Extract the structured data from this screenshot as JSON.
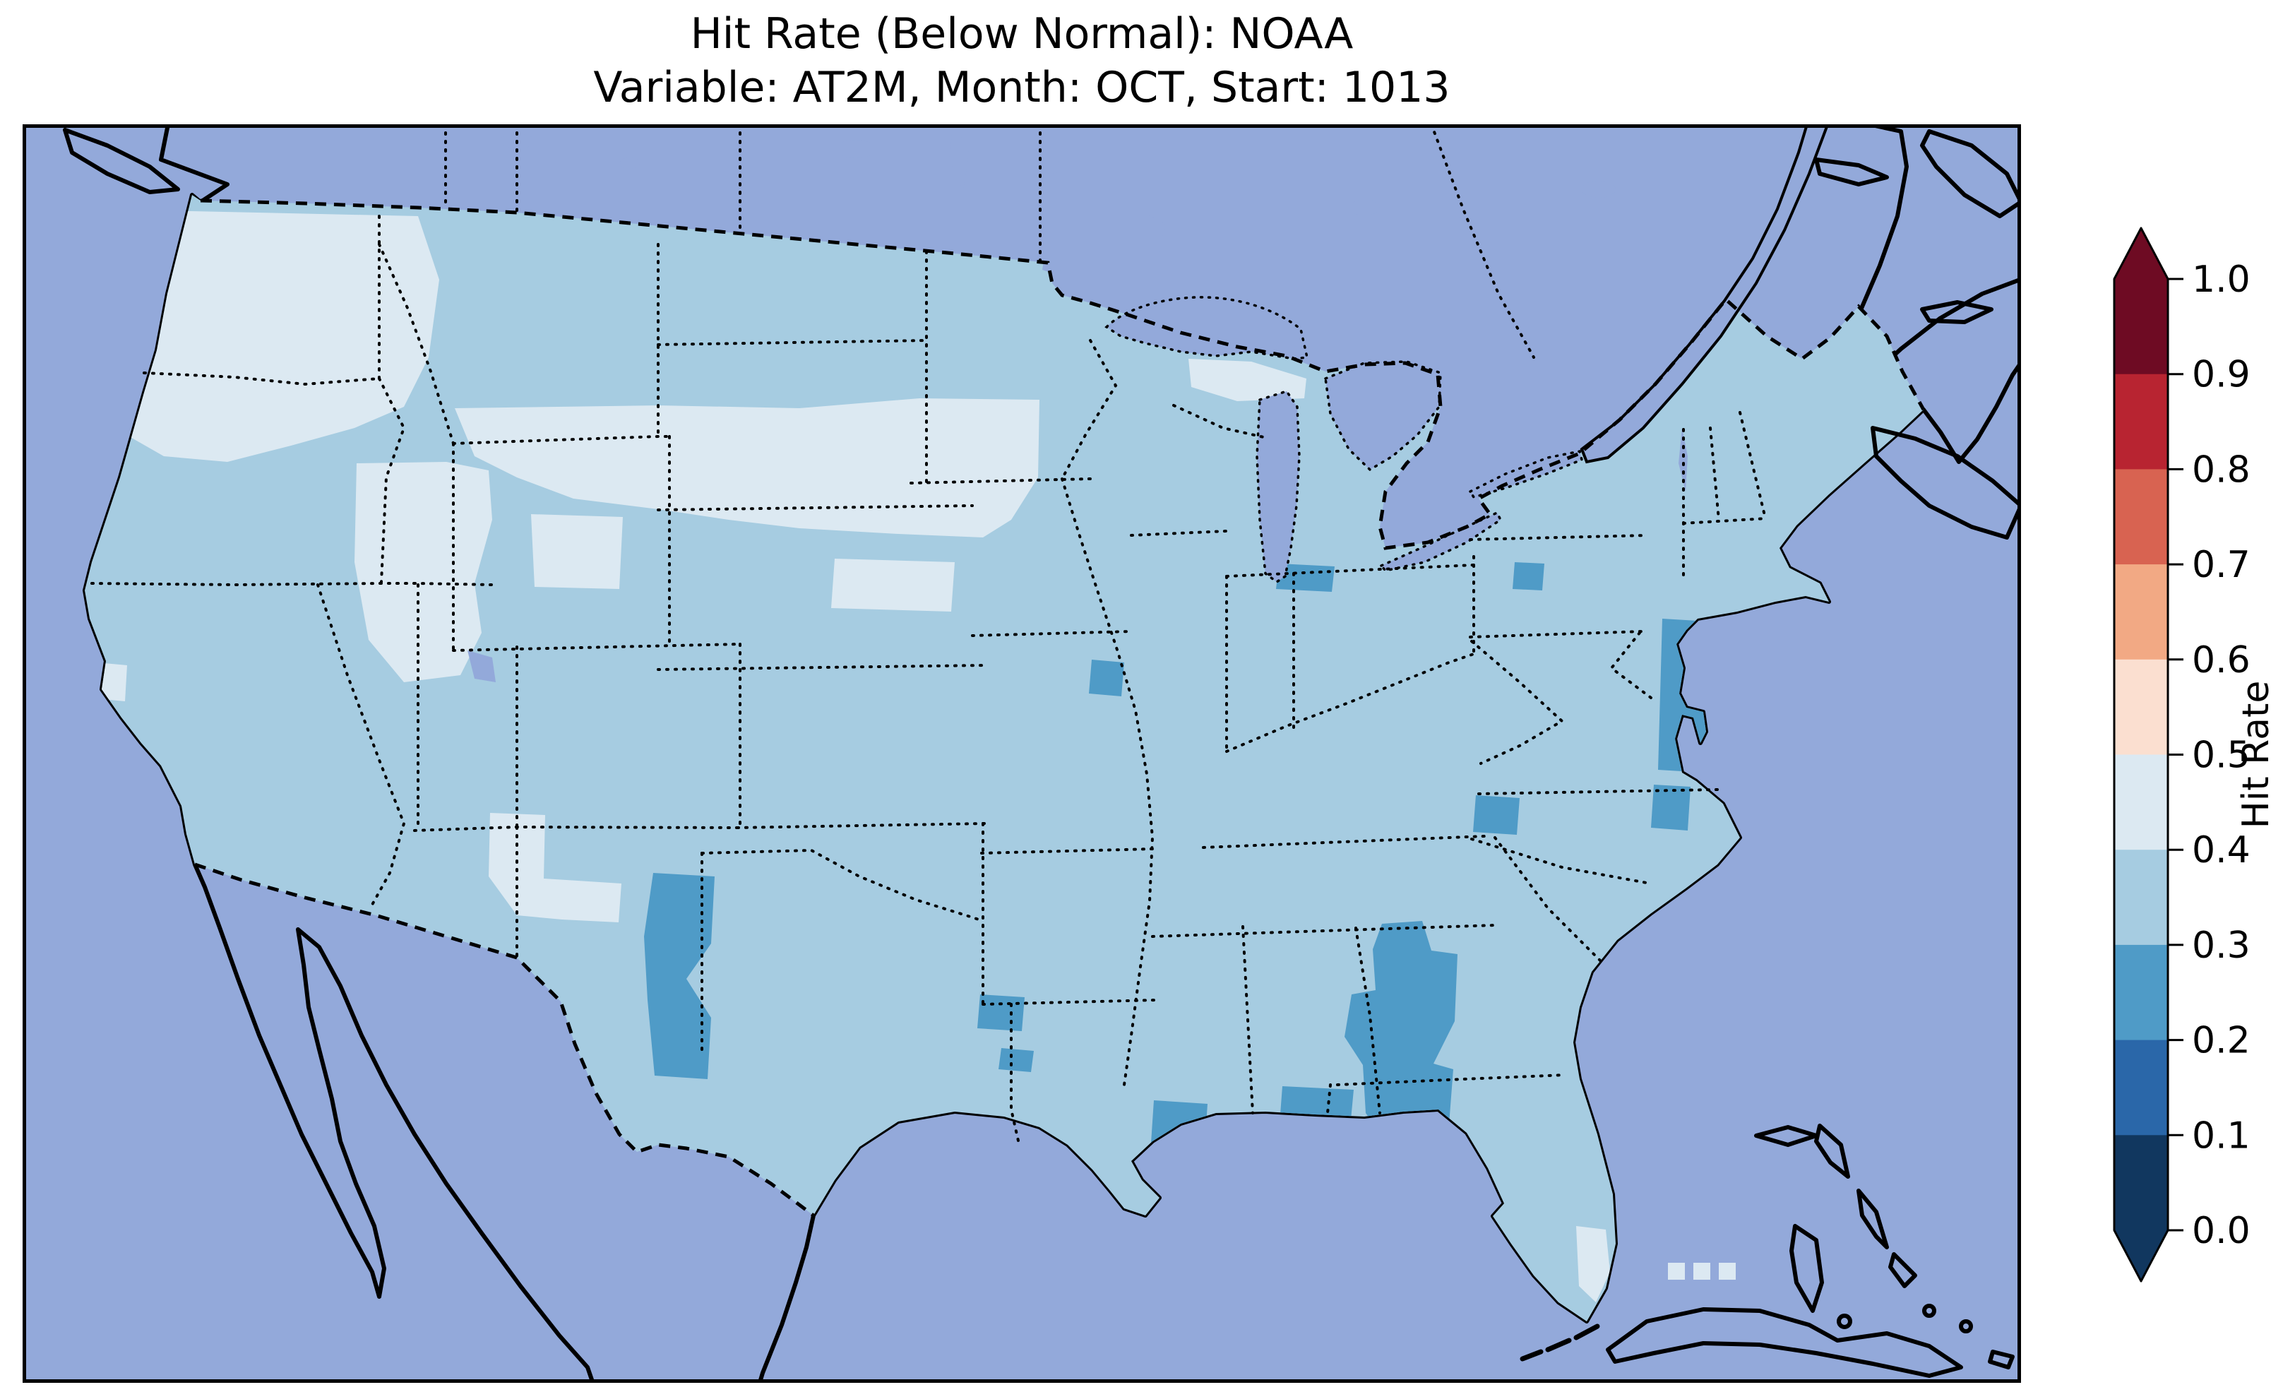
{
  "title": {
    "line1": "Hit Rate (Below Normal): NOAA",
    "line2": "Variable: AT2M, Month: OCT, Start: 1013"
  },
  "colorbar": {
    "label": "Hit Rate",
    "ticks": [
      "1.0",
      "0.9",
      "0.8",
      "0.7",
      "0.6",
      "0.5",
      "0.4",
      "0.3",
      "0.2",
      "0.1",
      "0.0"
    ],
    "extend": "both",
    "outline_color": "#000000",
    "bins_top_to_bottom": [
      {
        "range": "0.9-1.0",
        "color": "#6e0b23"
      },
      {
        "range": "0.8-0.9",
        "color": "#b82431"
      },
      {
        "range": "0.7-0.8",
        "color": "#d86351"
      },
      {
        "range": "0.6-0.7",
        "color": "#f2a984"
      },
      {
        "range": "0.5-0.6",
        "color": "#fbdfd0"
      },
      {
        "range": "0.4-0.5",
        "color": "#dce9f2"
      },
      {
        "range": "0.3-0.4",
        "color": "#a6cce1"
      },
      {
        "range": "0.2-0.3",
        "color": "#4f9bc7"
      },
      {
        "range": "0.1-0.2",
        "color": "#2a67a9"
      },
      {
        "range": "0.0-0.1",
        "color": "#11375f"
      }
    ]
  },
  "map": {
    "fills": {
      "ocean": "#93a9da",
      "land": "#efecd4",
      "lake": "#93a9da",
      "base": "#a6cce1",
      "light": "#dce9f2",
      "dark": "#4f9bc7",
      "coastline": "#000000"
    }
  },
  "chart_data": {
    "type": "heatmap",
    "subtype": "gridded geographic hit-rate map (Lambert-conformal CONUS view)",
    "title": "Hit Rate (Below Normal): NOAA",
    "subtitle": "Variable: AT2M, Month: OCT, Start: 1013",
    "region": "Continental United States with surrounding Canada, Mexico, Cuba, Bahamas",
    "colormap": "RdBu reversed, 10 discrete bins, extended arrows both ends",
    "colorbar_label": "Hit Rate",
    "bin_edges": [
      0.0,
      0.1,
      0.2,
      0.3,
      0.4,
      0.5,
      0.6,
      0.7,
      0.8,
      0.9,
      1.0
    ],
    "bin_colors_low_to_high": [
      "#11375f",
      "#2a67a9",
      "#4f9bc7",
      "#a6cce1",
      "#dce9f2",
      "#fbdfd0",
      "#f2a984",
      "#d86351",
      "#b82431",
      "#6e0b23"
    ],
    "tick_labels": [
      "0.0",
      "0.1",
      "0.2",
      "0.3",
      "0.4",
      "0.5",
      "0.6",
      "0.7",
      "0.8",
      "0.9",
      "1.0"
    ],
    "grid": false,
    "legend_position": "right vertical colorbar",
    "values_summary": {
      "dominant_value_bin": "0.3-0.4 over most of the CONUS",
      "regions_0.4_to_0.5": [
        "Washington and Oregon interior",
        "Idaho",
        "Nevada and Utah Great Basin",
        "western Colorado",
        "Wyoming",
        "western Dakotas",
        "Nebraska and central Kansas",
        "western New Mexico / eastern Arizona patches",
        "northern Wisconsin and upper Michigan",
        "northwestern Minnesota",
        "central California coast cells",
        "southern Florida tip cells",
        "three offshore cells southwest of Florida"
      ],
      "regions_0.2_to_0.3": [
        "west Texas strip along New Mexico border",
        "two northeast Texas cells",
        "Mississippi delta / south Louisiana",
        "Mississippi-Alabama coast",
        "large central Georgia blob extending into Florida panhandle",
        "North Carolina / South Carolina border cell",
        "Chesapeake Bay / Delmarva cells",
        "coastal North Carolina cells",
        "northern Indiana cell at south tip of Lake Michigan",
        "eastern Ohio / Pennsylvania border cell",
        "western Missouri cell"
      ],
      "no_data_basemap": "Canada, Mexico, Cuba and Bahamas shown as cream land; oceans and Great Lakes periwinkle blue"
    }
  }
}
